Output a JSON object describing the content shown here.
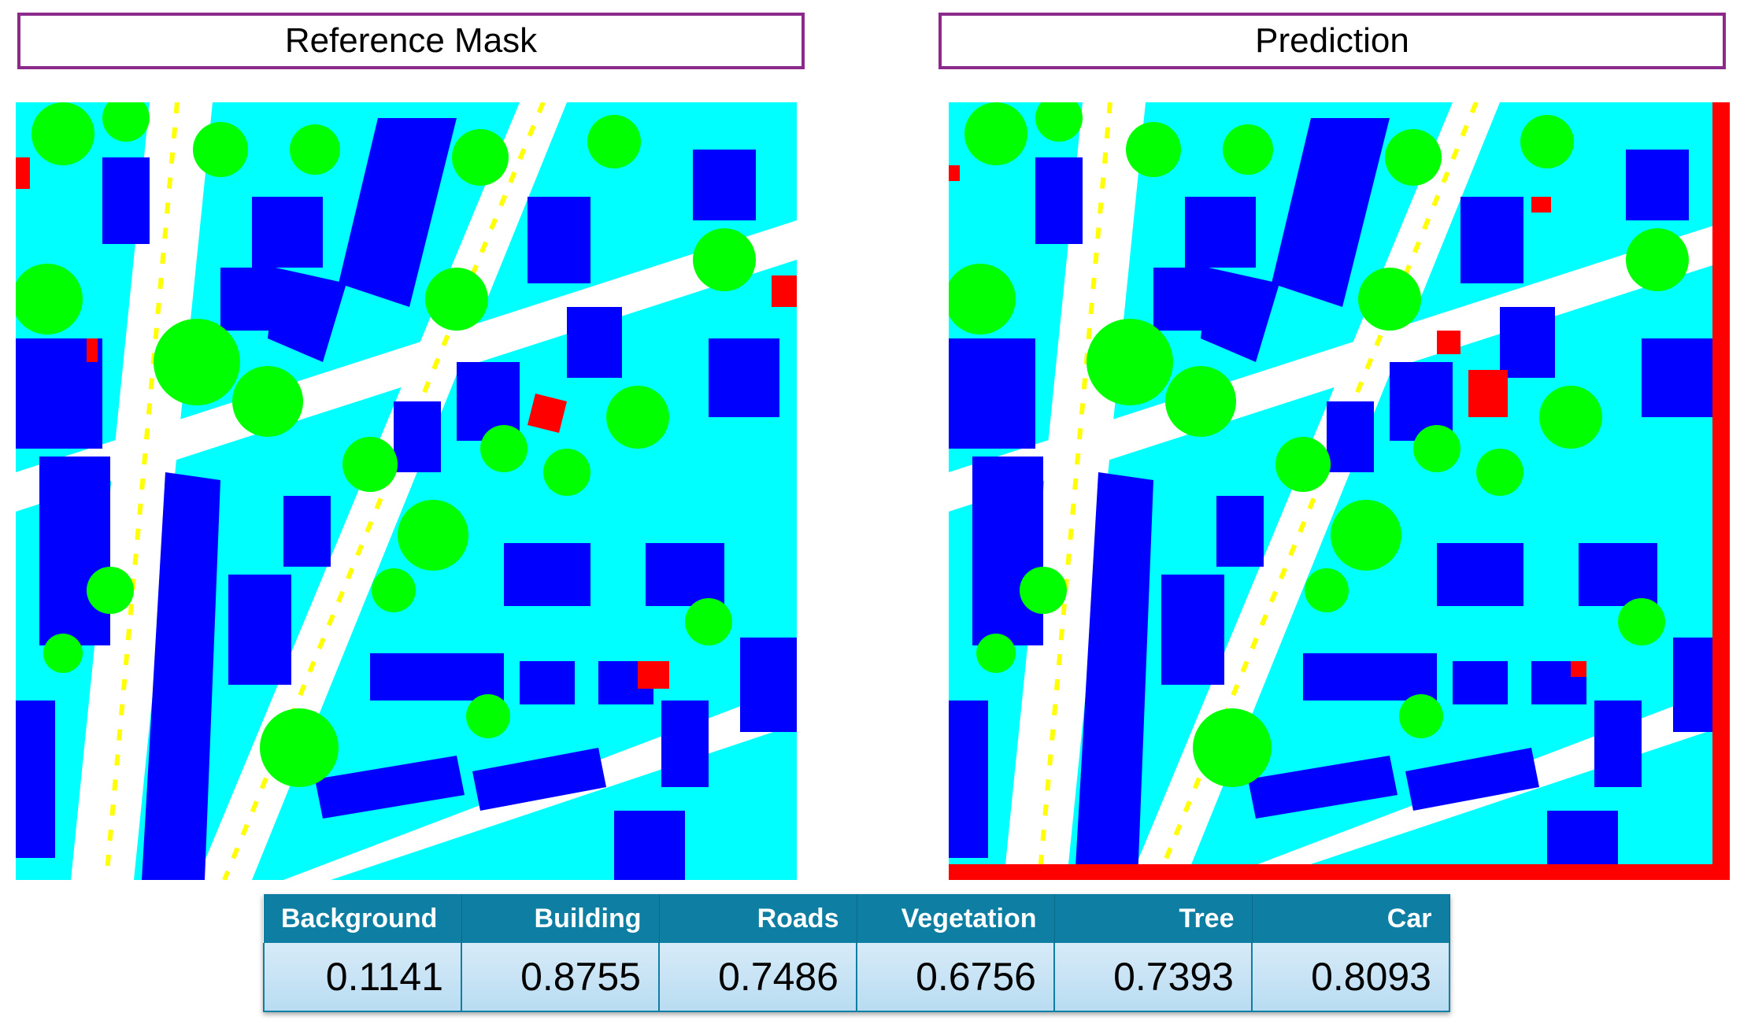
{
  "panels": {
    "left_title": "Reference Mask",
    "right_title": "Prediction"
  },
  "class_colors": {
    "background": "#ffffff",
    "building": "#0000ff",
    "roads": "#00ffff",
    "vegetation": "#00ff00",
    "tree": "#ffff00",
    "car": "#ff0000"
  },
  "metrics": {
    "headers": [
      "Background",
      "Building",
      "Roads",
      "Vegetation",
      "Tree",
      "Car"
    ],
    "values": [
      "0.1141",
      "0.8755",
      "0.7486",
      "0.6756",
      "0.7393",
      "0.8093"
    ]
  }
}
